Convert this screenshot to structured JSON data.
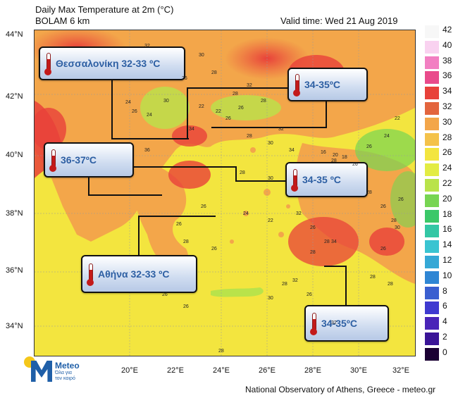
{
  "header": {
    "title_line1": "Daily Max Temperature at 2m (°C)",
    "title_line2": "BOLAM 6 km",
    "valid_time": "Valid time: Wed 21 Aug 2019"
  },
  "colors": {
    "sea_yellow": "#f5e642",
    "land_orange": "#f3a64a",
    "hot_red": "#e8413a",
    "accent_text": "#2d5fa3"
  },
  "latitudes": [
    "44°N",
    "42°N",
    "40°N",
    "38°N",
    "36°N",
    "34°N"
  ],
  "longitudes": [
    "20°E",
    "22°E",
    "24°E",
    "26°E",
    "28°E",
    "30°E",
    "32°E"
  ],
  "legend": {
    "labels": [
      "42",
      "40",
      "38",
      "36",
      "34",
      "32",
      "30",
      "28",
      "26",
      "24",
      "22",
      "20",
      "18",
      "16",
      "14",
      "12",
      "10",
      "8",
      "6",
      "4",
      "2",
      "0"
    ],
    "colors": [
      "#f7f7f7",
      "#f9d2f0",
      "#f27fc2",
      "#e94a8b",
      "#e8413a",
      "#e3653e",
      "#f3a64a",
      "#f4c24a",
      "#f3e53f",
      "#e3ec43",
      "#b9e34a",
      "#77d552",
      "#3bc868",
      "#33c7a5",
      "#3ac4d1",
      "#35a8d6",
      "#2f86d4",
      "#3a5fd0",
      "#3f3ad0",
      "#4a25b8",
      "#3a1497",
      "#1a0033"
    ]
  },
  "callouts": [
    {
      "text": "Θεσσαλονίκη 32-33 ºC"
    },
    {
      "text": "34-35ºC"
    },
    {
      "text": "36-37ºC"
    },
    {
      "text": "34-35 ºC"
    },
    {
      "text": "Αθήνα 32-33 ºC"
    },
    {
      "text": "34-35ºC"
    }
  ],
  "map_numbers": [
    "32",
    "30",
    "28",
    "26",
    "34",
    "24",
    "22",
    "28",
    "26",
    "30",
    "32",
    "28",
    "26",
    "24",
    "22",
    "26",
    "28",
    "30",
    "32",
    "34",
    "36",
    "28",
    "26",
    "24",
    "22",
    "20",
    "18",
    "16",
    "26",
    "28",
    "30",
    "32",
    "26",
    "28",
    "26",
    "24",
    "22",
    "26",
    "28",
    "30",
    "32",
    "34",
    "28",
    "26",
    "28",
    "26",
    "28",
    "30",
    "32",
    "26",
    "28",
    "26",
    "28",
    "26",
    "28",
    "26",
    "28",
    "26"
  ],
  "logo": {
    "name": "Meteo",
    "tagline_line1": "Όλα για",
    "tagline_line2": "τον καιρό"
  },
  "footer": "National Observatory of Athens, Greece - meteo.gr"
}
